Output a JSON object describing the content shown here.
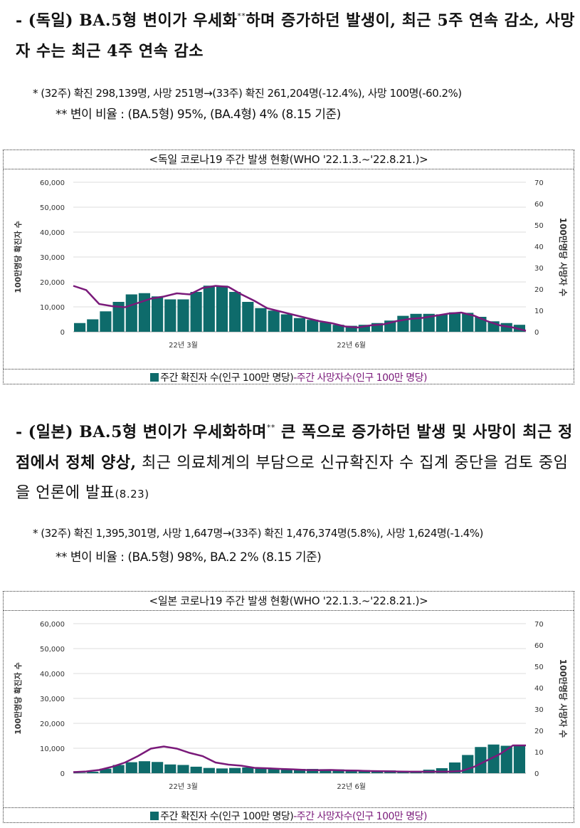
{
  "sections": [
    {
      "id": "germany",
      "heading_bold": "- (독일) BA.5형 변이가 우세화",
      "heading_sup": "**",
      "heading_rest": "하며 증가하던 발생이, 최근 5주 연속 감소, 사망자 수는 최근 4주 연속 감소",
      "heading_tail": "",
      "note1": "* (32주) 확진 298,139명, 사망 251명→(33주) 확진 261,204명(-12.4%), 사망 100명(-60.2%)",
      "note2": "** 변이 비율 : (BA.5형) 95%, (BA.4형) 4% (8.15 기준)"
    },
    {
      "id": "japan",
      "heading_bold": "- (일본) BA.5형 변이가 우세화하며",
      "heading_sup": "**",
      "heading_rest": " 큰 폭으로 증가하던 발생 및 사망이 최근 정점에서 정체 양상,",
      "heading_tail": "최근 의료체계의 부담으로 신규확진자 수 집계 중단을 검토 중임을 언론에 발표",
      "heading_small": "(8.23)",
      "note1": "* (32주) 확진 1,395,301명, 사망 1,647명→(33주) 확진 1,476,374명(5.8%), 사망 1,624명(-1.4%)",
      "note2": "** 변이 비율 : (BA.5형) 98%, BA.2 2% (8.15 기준)"
    }
  ],
  "chart_data": [
    {
      "type": "bar",
      "title": "<독일 코로나19 주간 발생 현황(WHO '22.1.3.~'22.8.21.)>",
      "ylabel": "100만명당 확진자 수",
      "y2label": "100만명당 사망자 수",
      "ylim": [
        0,
        60000
      ],
      "y2lim": [
        0,
        70
      ],
      "yticks": [
        "0",
        "10,000",
        "20,000",
        "30,000",
        "40,000",
        "50,000",
        "60,000"
      ],
      "y2ticks": [
        "0",
        "10",
        "20",
        "30",
        "40",
        "50",
        "60",
        "70"
      ],
      "xtick_labels": [
        {
          "index": 8,
          "label": "22년 3월"
        },
        {
          "index": 21,
          "label": "22년 6월"
        }
      ],
      "series": [
        {
          "name": "주간 확진자 수(인구 100만 명당)",
          "kind": "bar",
          "color": "#0e6b6b",
          "values": [
            3500,
            5000,
            8200,
            12000,
            15000,
            15500,
            14200,
            13000,
            13000,
            16000,
            18500,
            18500,
            16000,
            12000,
            9500,
            8500,
            7000,
            5500,
            4800,
            3800,
            2800,
            2400,
            2800,
            3500,
            4500,
            6400,
            7200,
            7200,
            7000,
            7800,
            7600,
            6000,
            4200,
            3500,
            2800
          ]
        },
        {
          "name": "주간 사망자수(인구 100만 명당)",
          "kind": "line",
          "color": "#7a1a7a",
          "values": [
            21.5,
            19.5,
            13,
            12,
            11.5,
            13.5,
            15.5,
            16.5,
            18,
            17.5,
            20.5,
            21.5,
            21,
            17.5,
            14.5,
            11,
            9.5,
            8,
            6.5,
            5,
            4,
            2.5,
            2,
            3,
            3.5,
            5,
            6,
            6.5,
            7.5,
            8.5,
            9,
            7.5,
            5,
            3,
            2,
            0.5
          ]
        }
      ],
      "legend": [
        "주간 확진자 수(인구 100만 명당)",
        "-주간 사망자수(인구 100만 명당)"
      ]
    },
    {
      "type": "bar",
      "title": "<일본 코로나19 주간 발생 현황(WHO '22.1.3.~'22.8.21.)>",
      "ylabel": "100만명당 확진자 수",
      "y2label": "100만명당 사망자 수",
      "ylim": [
        0,
        60000
      ],
      "y2lim": [
        0,
        70
      ],
      "yticks": [
        "0",
        "10,000",
        "20,000",
        "30,000",
        "40,000",
        "50,000",
        "60,000"
      ],
      "y2ticks": [
        "0",
        "10",
        "20",
        "30",
        "40",
        "50",
        "60",
        "70"
      ],
      "xtick_labels": [
        {
          "index": 8,
          "label": "22년 3월"
        },
        {
          "index": 21,
          "label": "22년 6월"
        }
      ],
      "series": [
        {
          "name": "주간 확진자 수(인구 100만 명당)",
          "kind": "bar",
          "color": "#0e6b6b",
          "values": [
            200,
            600,
            1800,
            3300,
            4400,
            4800,
            4500,
            3500,
            3300,
            2600,
            2100,
            1900,
            2100,
            2300,
            2200,
            1900,
            1800,
            1700,
            1700,
            1600,
            1500,
            1300,
            1200,
            1100,
            1100,
            900,
            900,
            1400,
            2000,
            4300,
            7300,
            10500,
            11500,
            11000,
            11000
          ]
        },
        {
          "name": "주간 사망자수(인구 100만 명당)",
          "kind": "line",
          "color": "#7a1a7a",
          "values": [
            0.5,
            0.8,
            1.5,
            3,
            5,
            8,
            11.5,
            12.5,
            11.5,
            9.5,
            8,
            5,
            4,
            3.5,
            2.5,
            2.3,
            2,
            1.8,
            1.5,
            1.4,
            1.5,
            1.3,
            1.2,
            1,
            0.9,
            0.8,
            0.7,
            0.7,
            0.7,
            0.7,
            1,
            3,
            6,
            9,
            13,
            13
          ]
        }
      ],
      "legend": [
        "주간 확진자 수(인구 100만 명당)",
        "-주간 사망자수(인구 100만 명당)"
      ]
    }
  ]
}
